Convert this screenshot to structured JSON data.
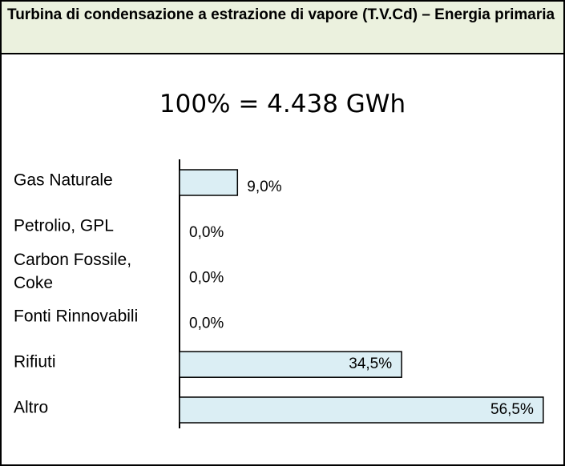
{
  "chart_data": {
    "type": "bar",
    "orientation": "horizontal",
    "title": "Turbina di condensazione a estrazione di vapore (T.V.Cd) – Energia primaria",
    "subtitle": "100% = 4.438 GWh",
    "categories": [
      "Gas Naturale",
      "Petrolio, GPL",
      "Carbon Fossile, Coke",
      "Fonti Rinnovabili",
      "Rifiuti",
      "Altro"
    ],
    "values": [
      9.0,
      0.0,
      0.0,
      0.0,
      34.5,
      56.5
    ],
    "value_labels": [
      "9,0%",
      "0,0%",
      "0,0%",
      "0,0%",
      "34,5%",
      "56,5%"
    ],
    "color": "#dbeef4",
    "xlim": [
      0,
      60
    ]
  }
}
